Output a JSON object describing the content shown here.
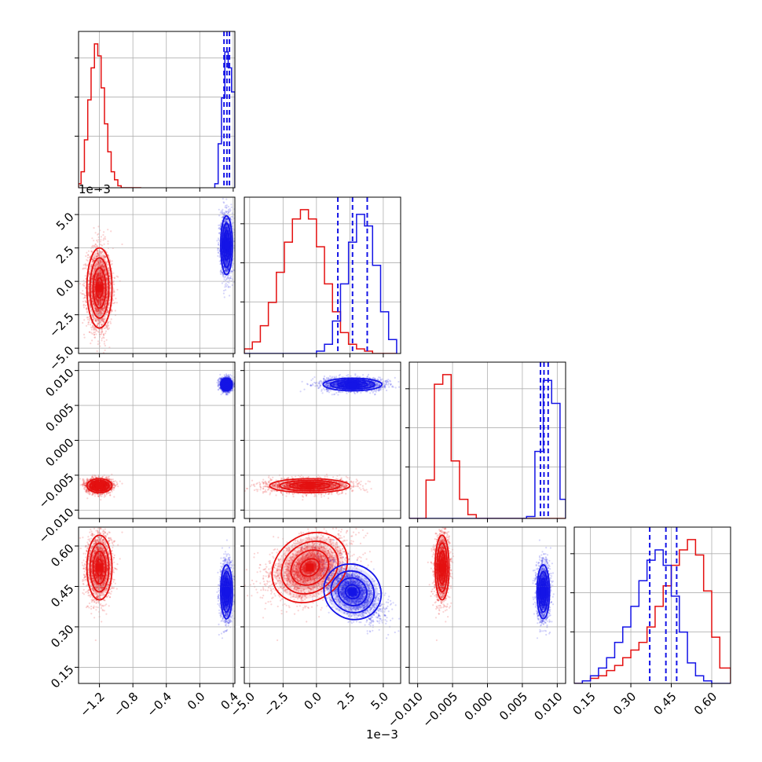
{
  "figure": {
    "scale_labels": {
      "x": "1e−3",
      "y": "1e−3"
    }
  },
  "chart_data": {
    "type": "corner",
    "grid": true,
    "legend": "none",
    "colors": {
      "red": "#e41010",
      "blue": "#1414e6"
    },
    "parameters": [
      {
        "ticks": [
          -1.2,
          -0.8,
          -0.4,
          0.0,
          0.4
        ],
        "tick_labels": [
          "−1.2",
          "−0.8",
          "−0.4",
          "0.0",
          "0.4"
        ],
        "range": [
          -1.45,
          0.42
        ]
      },
      {
        "ticks": [
          -5.0,
          -2.5,
          0.0,
          2.5,
          5.0
        ],
        "tick_labels": [
          "−5.0",
          "−2.5",
          "0.0",
          "2.5",
          "5.0"
        ],
        "range": [
          -5.4,
          6.3
        ]
      },
      {
        "ticks": [
          -0.01,
          -0.005,
          0.0,
          0.005,
          0.01
        ],
        "tick_labels": [
          "−0.010",
          "−0.005",
          "0.000",
          "0.005",
          "0.010"
        ],
        "range": [
          -0.0112,
          0.0112
        ]
      },
      {
        "ticks": [
          0.15,
          0.3,
          0.45,
          0.6
        ],
        "tick_labels": [
          "0.15",
          "0.30",
          "0.45",
          "0.60"
        ],
        "range": [
          0.09,
          0.67
        ]
      }
    ],
    "series": [
      {
        "color": "red",
        "samples": [
          {
            "mean": -1.2,
            "sd": 0.075
          },
          {
            "mean": -0.5,
            "sd": 1.5
          },
          {
            "mean": -0.0065,
            "sd": 0.0005
          },
          {
            "mean": 0.52,
            "sd": 0.06
          }
        ],
        "correlation_1_3": 0.35,
        "histograms": [
          {
            "edges": [
              -1.45,
              -1.42,
              -1.38,
              -1.34,
              -1.3,
              -1.26,
              -1.22,
              -1.18,
              -1.14,
              -1.1,
              -1.06,
              -1.02,
              -0.98,
              -0.94,
              -0.9,
              -0.86,
              -0.82,
              -0.78,
              -0.74,
              -0.7
            ],
            "counts": [
              2,
              8,
              24,
              44,
              60,
              72,
              66,
              50,
              32,
              18,
              8,
              4,
              1,
              0,
              0,
              0,
              0,
              0,
              0
            ]
          },
          {
            "edges": [
              -5.4,
              -4.8,
              -4.2,
              -3.6,
              -3.0,
              -2.4,
              -1.8,
              -1.2,
              -0.6,
              0.0,
              0.6,
              1.2,
              1.8,
              2.4,
              3.0,
              3.6,
              4.2,
              4.8,
              5.4,
              6.0
            ],
            "counts": [
              2,
              5,
              12,
              22,
              35,
              48,
              58,
              62,
              58,
              46,
              30,
              18,
              9,
              4,
              2,
              1,
              0,
              0,
              0
            ]
          },
          {
            "edges": [
              -0.0112,
              -0.01,
              -0.0088,
              -0.0076,
              -0.0064,
              -0.0052,
              -0.004,
              -0.0028,
              -0.0016,
              -0.0004,
              0.0008,
              0.002,
              0.0032,
              0.0044,
              0.0056,
              0.0068,
              0.008,
              0.0092,
              0.0104,
              0.0112
            ],
            "counts": [
              0,
              0,
              20,
              70,
              75,
              30,
              10,
              2,
              0,
              0,
              0,
              0,
              0,
              0,
              0,
              0,
              0,
              0,
              0
            ]
          },
          {
            "edges": [
              0.09,
              0.12,
              0.15,
              0.18,
              0.21,
              0.24,
              0.27,
              0.3,
              0.33,
              0.36,
              0.39,
              0.42,
              0.45,
              0.48,
              0.51,
              0.54,
              0.57,
              0.6,
              0.63,
              0.67
            ],
            "counts": [
              0,
              1,
              2,
              3,
              5,
              7,
              10,
              13,
              16,
              22,
              30,
              38,
              46,
              52,
              56,
              50,
              36,
              18,
              6
            ]
          }
        ]
      },
      {
        "color": "blue",
        "samples": [
          {
            "mean": 0.32,
            "sd": 0.035
          },
          {
            "mean": 2.7,
            "sd": 1.1
          },
          {
            "mean": 0.008,
            "sd": 0.00045
          },
          {
            "mean": 0.43,
            "sd": 0.05
          }
        ],
        "correlation_1_3": -0.6,
        "quantiles": [
          [
            0.29,
            0.325,
            0.355
          ],
          [
            1.6,
            2.7,
            3.8
          ],
          [
            0.0076,
            0.0081,
            0.0087
          ],
          [
            0.37,
            0.43,
            0.47
          ]
        ],
        "histograms": [
          {
            "edges": [
              0.18,
              0.22,
              0.26,
              0.3,
              0.34,
              0.38,
              0.42
            ],
            "counts": [
              2,
              22,
              45,
              68,
              60,
              48
            ]
          },
          {
            "edges": [
              -5.4,
              -4.8,
              -4.2,
              -3.6,
              -3.0,
              -2.4,
              -1.8,
              -1.2,
              -0.6,
              0.0,
              0.6,
              1.2,
              1.8,
              2.4,
              3.0,
              3.6,
              4.2,
              4.8,
              5.4,
              6.0
            ],
            "counts": [
              0,
              0,
              0,
              0,
              0,
              0,
              0,
              0,
              0,
              1,
              4,
              14,
              30,
              48,
              60,
              55,
              38,
              18,
              6
            ]
          },
          {
            "edges": [
              -0.0112,
              -0.01,
              -0.0088,
              -0.0076,
              -0.0064,
              -0.0052,
              -0.004,
              -0.0028,
              -0.0016,
              -0.0004,
              0.0008,
              0.002,
              0.0032,
              0.0044,
              0.0056,
              0.0068,
              0.008,
              0.0092,
              0.0104,
              0.0112
            ],
            "counts": [
              0,
              0,
              0,
              0,
              0,
              0,
              0,
              0,
              0,
              0,
              0,
              0,
              0,
              0,
              1,
              35,
              72,
              60,
              10
            ]
          },
          {
            "edges": [
              0.09,
              0.12,
              0.15,
              0.18,
              0.21,
              0.24,
              0.27,
              0.3,
              0.33,
              0.36,
              0.39,
              0.42,
              0.45,
              0.48,
              0.51,
              0.54,
              0.57,
              0.6,
              0.63,
              0.67
            ],
            "counts": [
              0,
              1,
              3,
              6,
              10,
              16,
              22,
              30,
              40,
              48,
              52,
              46,
              34,
              20,
              8,
              3,
              1,
              0,
              0
            ]
          }
        ]
      }
    ]
  }
}
